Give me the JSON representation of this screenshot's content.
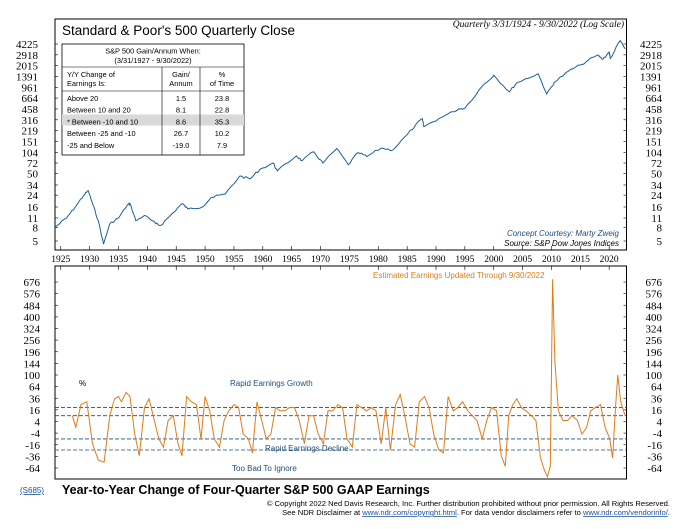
{
  "chart_data": [
    {
      "type": "line",
      "title": "Standard & Poor's 500 Quarterly Close",
      "subtitle": "Quarterly 3/31/1924 - 9/30/2022 (Log Scale)",
      "scale": "log",
      "ylim": [
        4,
        6000
      ],
      "xlim": [
        1924,
        2023
      ],
      "y_ticks": [
        "4225",
        "2918",
        "2015",
        "1391",
        "961",
        "664",
        "458",
        "316",
        "219",
        "151",
        "104",
        "72",
        "50",
        "34",
        "24",
        "16",
        "11",
        "8",
        "5"
      ],
      "x_ticks": [
        "1925",
        "1930",
        "1935",
        "1940",
        "1945",
        "1950",
        "1955",
        "1960",
        "1965",
        "1970",
        "1975",
        "1980",
        "1985",
        "1990",
        "1995",
        "2000",
        "2005",
        "2010",
        "2015",
        "2020"
      ],
      "series": [
        {
          "color": "#1f5f99",
          "x": [
            1924.0,
            1926.0,
            1927.5,
            1929.0,
            1929.75,
            1930.5,
            1931.5,
            1932.4,
            1933.5,
            1935.0,
            1936.5,
            1937.0,
            1938.0,
            1939.5,
            1941.5,
            1942.3,
            1944.0,
            1946.0,
            1947.0,
            1949.5,
            1951.0,
            1953.5,
            1956.0,
            1957.8,
            1959.5,
            1961.8,
            1962.5,
            1965.8,
            1966.8,
            1968.8,
            1970.4,
            1972.8,
            1974.8,
            1976.5,
            1978.0,
            1980.5,
            1982.5,
            1985.0,
            1987.6,
            1987.9,
            1990.5,
            1994.0,
            1995.0,
            1998.0,
            2000.0,
            2002.7,
            2004.0,
            2007.7,
            2009.2,
            2010.5,
            2013.0,
            2015.0,
            2018.0,
            2018.9,
            2020.0,
            2020.2,
            2021.9,
            2022.75
          ],
          "values": [
            8,
            11,
            16,
            24,
            28,
            18,
            10,
            4.5,
            9,
            11,
            17,
            18,
            10,
            12,
            9,
            8.5,
            12,
            18,
            15,
            16,
            22,
            25,
            46,
            42,
            58,
            72,
            55,
            92,
            78,
            106,
            72,
            118,
            68,
            103,
            90,
            120,
            112,
            190,
            330,
            250,
            330,
            460,
            470,
            1000,
            1450,
            820,
            1120,
            1530,
            760,
            1140,
            1680,
            2060,
            2900,
            2500,
            3200,
            2580,
            4766,
            3586
          ]
        }
      ],
      "table": {
        "title": [
          "S&P 500 Gain/Annum When:",
          "(3/31/1927 - 9/30/2022)"
        ],
        "headers": [
          [
            "Y/Y Change of",
            "Earnings Is:"
          ],
          [
            "Gain/",
            "Annum"
          ],
          [
            "%",
            "of Time"
          ]
        ],
        "rows": [
          {
            "label": "Above 20",
            "gain": "1.5",
            "time": "23.8",
            "highlight": false
          },
          {
            "label": "Between 10 and 20",
            "gain": "8.1",
            "time": "22.8",
            "highlight": false
          },
          {
            "label": "* Between -10 and 10",
            "gain": "8.6",
            "time": "35.3",
            "highlight": true
          },
          {
            "label": "Between -25 and -10",
            "gain": "26.7",
            "time": "10.2",
            "highlight": false
          },
          {
            "label": "-25 and Below",
            "gain": "-19.0",
            "time": "7.9",
            "highlight": false
          }
        ]
      },
      "annotations": [
        "Concept Courtesy: Marty Zweig",
        "Source: S&P Dow Jones Indices"
      ]
    },
    {
      "type": "line",
      "title": "Year-to-Year Change of Four-Quarter S&P 500 GAAP Earnings",
      "ylabel": "%",
      "ylim": [
        -70,
        700
      ],
      "y_ticks": [
        "676",
        "576",
        "484",
        "400",
        "324",
        "256",
        "196",
        "144",
        "100",
        "64",
        "36",
        "16",
        "4",
        "-4",
        "-16",
        "-36",
        "-64"
      ],
      "reference_lines": [
        {
          "value": 20,
          "label": "Rapid Earnings Growth"
        },
        {
          "value": 10,
          "label": ""
        },
        {
          "value": -10,
          "label": "Rapid Earnings Decline"
        },
        {
          "value": -25,
          "label": "Too Bad To Ignore"
        }
      ],
      "annotations": [
        "Estimated Earnings Updated Through 9/30/2022"
      ],
      "series": [
        {
          "color": "#e07b1a",
          "x": [
            1927.0,
            1927.6,
            1928.5,
            1929.5,
            1930.5,
            1931.5,
            1932.5,
            1933.5,
            1934.3,
            1935.0,
            1935.5,
            1936.3,
            1937.0,
            1937.8,
            1938.6,
            1939.5,
            1940.3,
            1941.2,
            1942.0,
            1942.8,
            1943.6,
            1944.5,
            1945.3,
            1946.0,
            1946.8,
            1947.6,
            1948.5,
            1949.3,
            1950.0,
            1950.8,
            1951.6,
            1952.5,
            1953.3,
            1954.1,
            1955.0,
            1955.8,
            1956.6,
            1957.5,
            1958.2,
            1959.0,
            1959.8,
            1960.6,
            1961.4,
            1962.2,
            1963.0,
            1963.8,
            1964.6,
            1965.5,
            1966.3,
            1967.2,
            1968.0,
            1968.8,
            1969.6,
            1970.5,
            1971.3,
            1972.1,
            1973.0,
            1973.8,
            1974.6,
            1975.5,
            1976.3,
            1977.1,
            1978.0,
            1978.8,
            1979.6,
            1980.5,
            1981.3,
            1982.1,
            1983.0,
            1983.8,
            1984.6,
            1985.5,
            1986.3,
            1987.1,
            1988.0,
            1988.8,
            1989.6,
            1990.5,
            1991.3,
            1992.1,
            1993.0,
            1993.8,
            1994.6,
            1995.5,
            1996.3,
            1997.1,
            1998.0,
            1998.8,
            1999.6,
            2000.5,
            2001.3,
            2002.0,
            2002.6,
            2003.3,
            2004.0,
            2004.8,
            2005.6,
            2006.5,
            2007.3,
            2008.1,
            2008.8,
            2009.3,
            2009.8,
            2010.2,
            2010.6,
            2011.2,
            2012.0,
            2012.8,
            2013.6,
            2014.5,
            2015.3,
            2016.1,
            2016.8,
            2017.6,
            2018.5,
            2019.3,
            2020.1,
            2020.6,
            2021.1,
            2021.5,
            2022.0,
            2022.75
          ],
          "values": [
            10,
            0,
            25,
            30,
            -15,
            -45,
            -50,
            10,
            35,
            40,
            30,
            50,
            40,
            -5,
            -35,
            20,
            35,
            5,
            -10,
            -20,
            5,
            10,
            -15,
            -35,
            40,
            30,
            25,
            -10,
            40,
            15,
            -10,
            -20,
            5,
            15,
            25,
            20,
            -5,
            -10,
            -30,
            30,
            5,
            -10,
            -5,
            20,
            15,
            15,
            20,
            20,
            5,
            -15,
            10,
            10,
            -5,
            -15,
            15,
            15,
            25,
            20,
            -10,
            -20,
            25,
            20,
            15,
            20,
            15,
            -15,
            20,
            -25,
            25,
            45,
            10,
            -15,
            -20,
            30,
            40,
            20,
            -5,
            -25,
            -30,
            40,
            15,
            20,
            30,
            15,
            10,
            5,
            -10,
            5,
            20,
            15,
            -35,
            -60,
            10,
            25,
            35,
            20,
            15,
            10,
            5,
            -40,
            -70,
            -85,
            -60,
            700,
            150,
            15,
            5,
            5,
            10,
            5,
            -5,
            0,
            15,
            20,
            25,
            0,
            -10,
            -40,
            20,
            100,
            30,
            10
          ]
        }
      ]
    }
  ],
  "badge": "(S685)",
  "copyright": {
    "line1": "© Copyright 2022 Ned Davis Research, Inc.  Further distribution prohibited without prior permission.  All Rights Reserved.",
    "line2_pre": "See NDR Disclaimer at ",
    "line2_link1": "www.ndr.com/copyright.html",
    "line2_mid": ".  For data vendor disclaimers refer to ",
    "line2_link2": "www.ndr.com/vendorinfo/",
    "line2_post": "."
  }
}
